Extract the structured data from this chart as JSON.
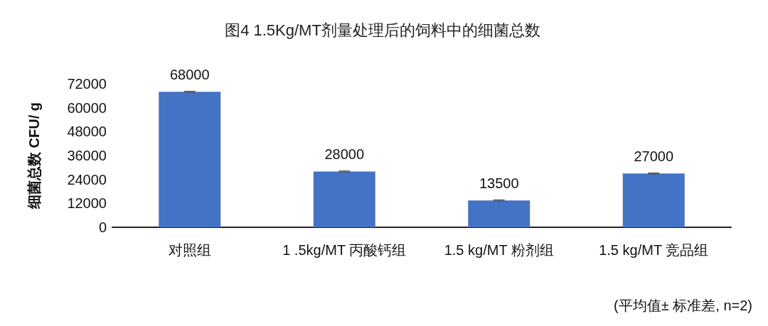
{
  "chart_data": {
    "type": "bar",
    "title": "图4 1.5Kg/MT剂量处理后的饲料中的细菌总数",
    "ylabel": "细菌总数 CFU/ g",
    "categories": [
      "对照组",
      "1 .5kg/MT 丙酸钙组",
      "1.5 kg/MT 粉剂组",
      "1.5 kg/MT 竞品组"
    ],
    "values": [
      68000,
      28000,
      13500,
      27000
    ],
    "errors": [
      300,
      300,
      300,
      300
    ],
    "color": "#4472c4",
    "ylim": [
      0,
      72000
    ],
    "yticks": [
      0,
      12000,
      24000,
      36000,
      48000,
      60000,
      72000
    ],
    "grid": false,
    "data_labels": true,
    "annotations": [
      "(平均值± 标准差, n=2)"
    ]
  }
}
